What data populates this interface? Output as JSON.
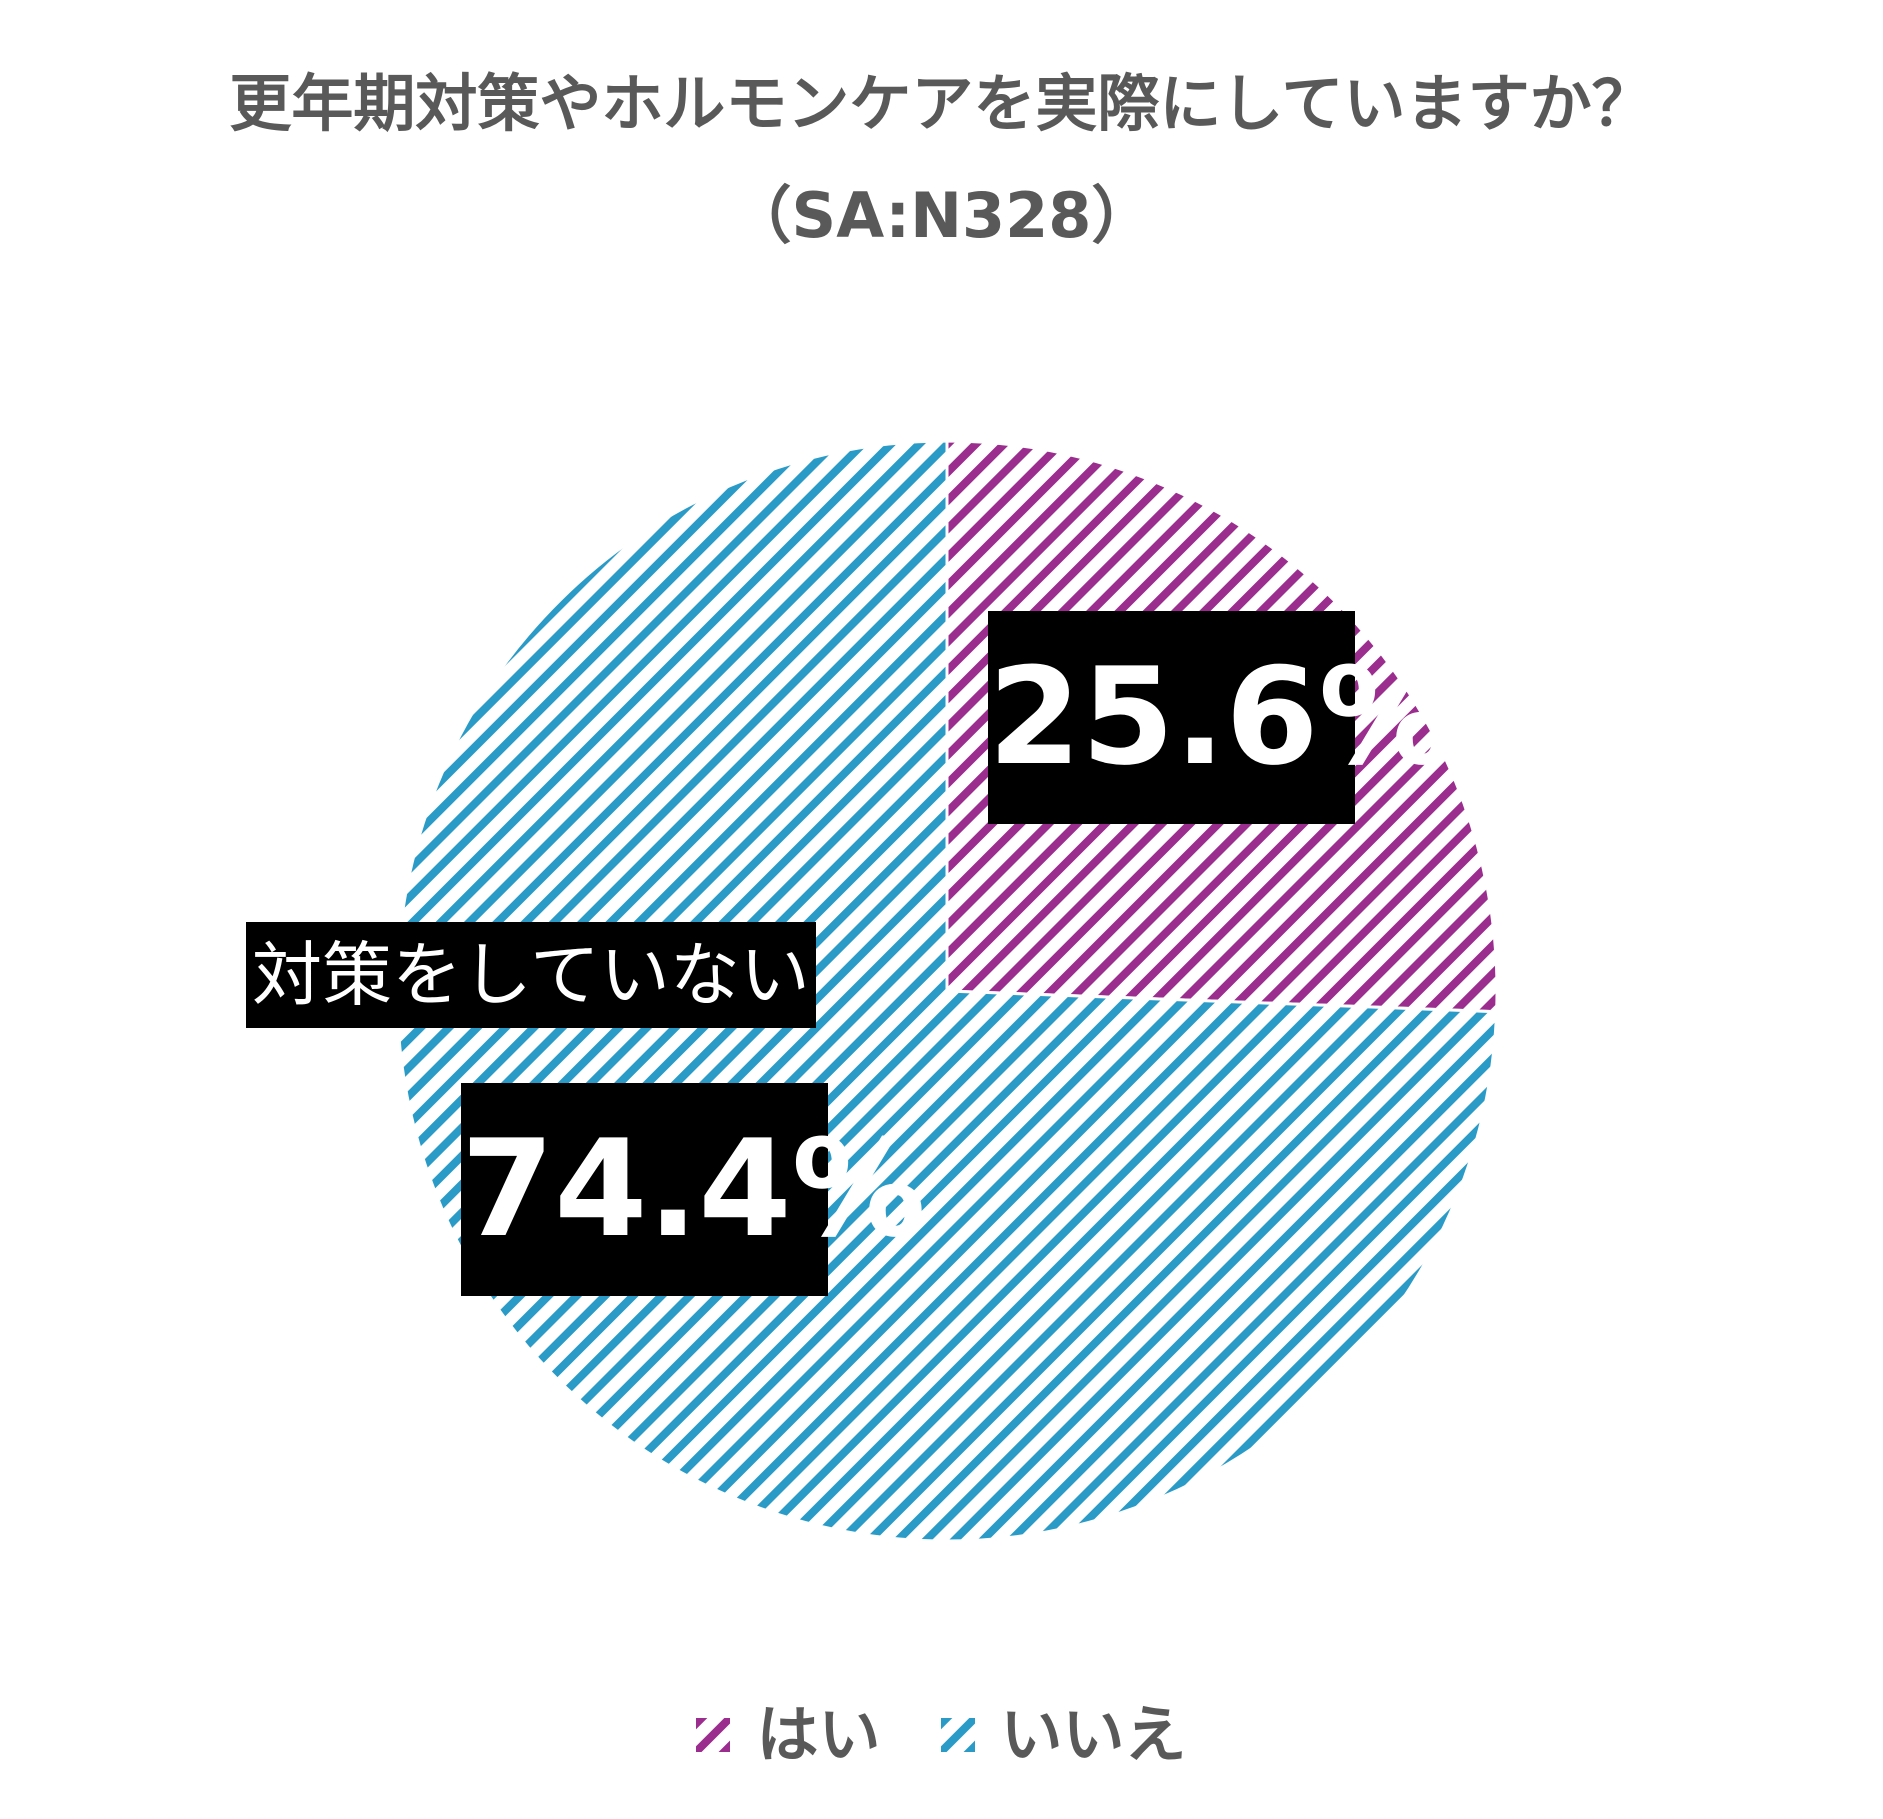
{
  "chart_data": {
    "type": "pie",
    "title": "更年期対策やホルモンケアを実際にしていますか？（SA:N328）",
    "slices": [
      {
        "name": "はい",
        "value": 25.6,
        "label": "25.6%",
        "color": "#9b2d8e",
        "pattern": "diagonal-stripes"
      },
      {
        "name": "いいえ",
        "value": 74.4,
        "label": "74.4%",
        "annotation": "対策をしていない",
        "color": "#2a9bc7",
        "pattern": "diagonal-stripes"
      }
    ],
    "start_angle_deg": 0,
    "direction": "clockwise",
    "legend": {
      "position": "bottom-center",
      "items": [
        "はい",
        "いいえ"
      ]
    }
  }
}
